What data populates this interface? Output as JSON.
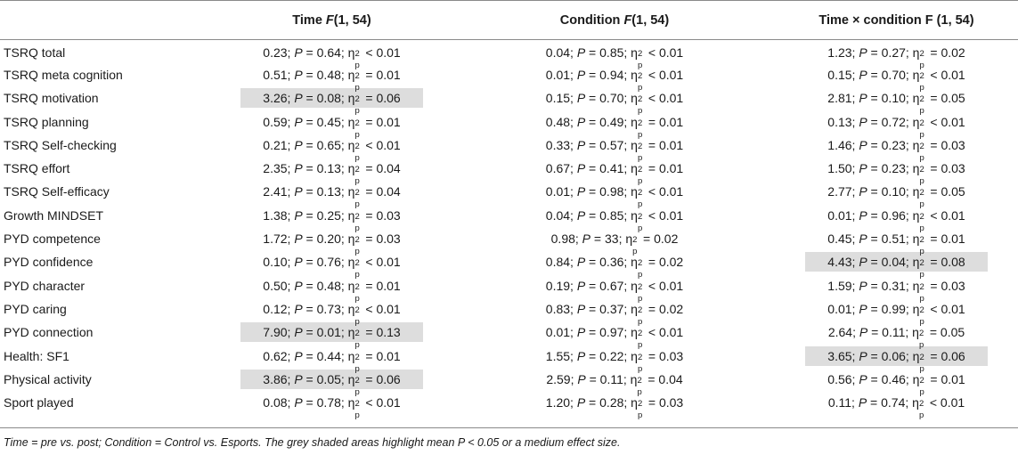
{
  "columns": {
    "blank": "",
    "time": {
      "prefix": "Time ",
      "stat": "F",
      "df": "(1, 54)"
    },
    "condition": {
      "prefix": "Condition ",
      "stat": "F",
      "df": "(1, 54)"
    },
    "interaction": {
      "prefix": "Time × condition F ",
      "stat": "",
      "df": "(1, 54)"
    }
  },
  "symbols": {
    "p": "P",
    "eta": "η",
    "eta_sup": "2",
    "eta_sub": "p"
  },
  "rows": [
    {
      "label": "TSRQ total",
      "time": {
        "f": "0.23",
        "p": "0.64",
        "op": "<",
        "eta": "0.01",
        "shaded": false
      },
      "condition": {
        "f": "0.04",
        "p": "0.85",
        "op": "<",
        "eta": "0.01",
        "shaded": false
      },
      "interaction": {
        "f": "1.23",
        "p": "0.27",
        "op": "=",
        "eta": "0.02",
        "shaded": false
      }
    },
    {
      "label": "TSRQ meta cognition",
      "time": {
        "f": "0.51",
        "p": "0.48",
        "op": "=",
        "eta": "0.01",
        "shaded": false
      },
      "condition": {
        "f": "0.01",
        "p": "0.94",
        "op": "<",
        "eta": "0.01",
        "shaded": false
      },
      "interaction": {
        "f": "0.15",
        "p": "0.70",
        "op": "<",
        "eta": "0.01",
        "shaded": false
      }
    },
    {
      "label": "TSRQ motivation",
      "time": {
        "f": "3.26",
        "p": "0.08",
        "op": "=",
        "eta": "0.06",
        "shaded": true
      },
      "condition": {
        "f": "0.15",
        "p": "0.70",
        "op": "<",
        "eta": "0.01",
        "shaded": false
      },
      "interaction": {
        "f": "2.81",
        "p": "0.10",
        "op": "=",
        "eta": "0.05",
        "shaded": false
      }
    },
    {
      "label": "TSRQ planning",
      "time": {
        "f": "0.59",
        "p": "0.45",
        "op": "=",
        "eta": "0.01",
        "shaded": false
      },
      "condition": {
        "f": "0.48",
        "p": "0.49",
        "op": "=",
        "eta": "0.01",
        "shaded": false
      },
      "interaction": {
        "f": "0.13",
        "p": "0.72",
        "op": "<",
        "eta": "0.01",
        "shaded": false
      }
    },
    {
      "label": "TSRQ Self-checking",
      "time": {
        "f": "0.21",
        "p": "0.65",
        "op": "<",
        "eta": "0.01",
        "shaded": false
      },
      "condition": {
        "f": "0.33",
        "p": "0.57",
        "op": "=",
        "eta": "0.01",
        "shaded": false
      },
      "interaction": {
        "f": "1.46",
        "p": "0.23",
        "op": "=",
        "eta": "0.03",
        "shaded": false
      }
    },
    {
      "label": "TSRQ effort",
      "time": {
        "f": "2.35",
        "p": "0.13",
        "op": "=",
        "eta": "0.04",
        "shaded": false
      },
      "condition": {
        "f": "0.67",
        "p": "0.41",
        "op": "=",
        "eta": "0.01",
        "shaded": false
      },
      "interaction": {
        "f": "1.50",
        "p": "0.23",
        "op": "=",
        "eta": "0.03",
        "shaded": false
      }
    },
    {
      "label": "TSRQ Self-efficacy",
      "time": {
        "f": "2.41",
        "p": "0.13",
        "op": "=",
        "eta": "0.04",
        "shaded": false
      },
      "condition": {
        "f": "0.01",
        "p": "0.98",
        "op": "<",
        "eta": "0.01",
        "shaded": false
      },
      "interaction": {
        "f": "2.77",
        "p": "0.10",
        "op": "=",
        "eta": "0.05",
        "shaded": false
      }
    },
    {
      "label": "Growth MINDSET",
      "time": {
        "f": "1.38",
        "p": "0.25",
        "op": "=",
        "eta": "0.03",
        "shaded": false
      },
      "condition": {
        "f": "0.04",
        "p": "0.85",
        "op": "<",
        "eta": "0.01",
        "shaded": false
      },
      "interaction": {
        "f": "0.01",
        "p": "0.96",
        "op": "<",
        "eta": "0.01",
        "shaded": false
      }
    },
    {
      "label": "PYD competence",
      "time": {
        "f": "1.72",
        "p": "0.20",
        "op": "=",
        "eta": "0.03",
        "shaded": false
      },
      "condition": {
        "f": "0.98",
        "p": "33",
        "op": "=",
        "eta": "0.02",
        "shaded": false
      },
      "interaction": {
        "f": "0.45",
        "p": "0.51",
        "op": "=",
        "eta": "0.01",
        "shaded": false
      }
    },
    {
      "label": "PYD confidence",
      "time": {
        "f": "0.10",
        "p": "0.76",
        "op": "<",
        "eta": "0.01",
        "shaded": false
      },
      "condition": {
        "f": "0.84",
        "p": "0.36",
        "op": "=",
        "eta": "0.02",
        "shaded": false
      },
      "interaction": {
        "f": "4.43",
        "p": "0.04",
        "op": "=",
        "eta": "0.08",
        "shaded": true
      }
    },
    {
      "label": "PYD character",
      "time": {
        "f": "0.50",
        "p": "0.48",
        "op": "=",
        "eta": "0.01",
        "shaded": false
      },
      "condition": {
        "f": "0.19",
        "p": "0.67",
        "op": "<",
        "eta": "0.01",
        "shaded": false
      },
      "interaction": {
        "f": "1.59",
        "p": "0.31",
        "op": "=",
        "eta": "0.03",
        "shaded": false
      }
    },
    {
      "label": "PYD caring",
      "time": {
        "f": "0.12",
        "p": "0.73",
        "op": "<",
        "eta": "0.01",
        "shaded": false
      },
      "condition": {
        "f": "0.83",
        "p": "0.37",
        "op": "=",
        "eta": "0.02",
        "shaded": false
      },
      "interaction": {
        "f": "0.01",
        "p": "0.99",
        "op": "<",
        "eta": "0.01",
        "shaded": false
      }
    },
    {
      "label": "PYD connection",
      "time": {
        "f": "7.90",
        "p": "0.01",
        "op": "=",
        "eta": "0.13",
        "shaded": true
      },
      "condition": {
        "f": "0.01",
        "p": "0.97",
        "op": "<",
        "eta": "0.01",
        "shaded": false
      },
      "interaction": {
        "f": "2.64",
        "p": "0.11",
        "op": "=",
        "eta": "0.05",
        "shaded": false
      }
    },
    {
      "label": "Health: SF1",
      "time": {
        "f": "0.62",
        "p": "0.44",
        "op": "=",
        "eta": "0.01",
        "shaded": false
      },
      "condition": {
        "f": "1.55",
        "p": "0.22",
        "op": "=",
        "eta": "0.03",
        "shaded": false
      },
      "interaction": {
        "f": "3.65",
        "p": "0.06",
        "op": "=",
        "eta": "0.06",
        "shaded": true
      }
    },
    {
      "label": "Physical activity",
      "time": {
        "f": "3.86",
        "p": "0.05",
        "op": "=",
        "eta": "0.06",
        "shaded": true
      },
      "condition": {
        "f": "2.59",
        "p": "0.11",
        "op": "=",
        "eta": "0.04",
        "shaded": false
      },
      "interaction": {
        "f": "0.56",
        "p": "0.46",
        "op": "=",
        "eta": "0.01",
        "shaded": false
      }
    },
    {
      "label": "Sport played",
      "time": {
        "f": "0.08",
        "p": "0.78",
        "op": "<",
        "eta": "0.01",
        "shaded": false
      },
      "condition": {
        "f": "1.20",
        "p": "0.28",
        "op": "=",
        "eta": "0.03",
        "shaded": false
      },
      "interaction": {
        "f": "0.11",
        "p": "0.74",
        "op": "<",
        "eta": "0.01",
        "shaded": false
      }
    }
  ],
  "note": "Time = pre vs. post; Condition = Control vs. Esports. The grey shaded areas highlight mean P < 0.05 or a medium effect size."
}
